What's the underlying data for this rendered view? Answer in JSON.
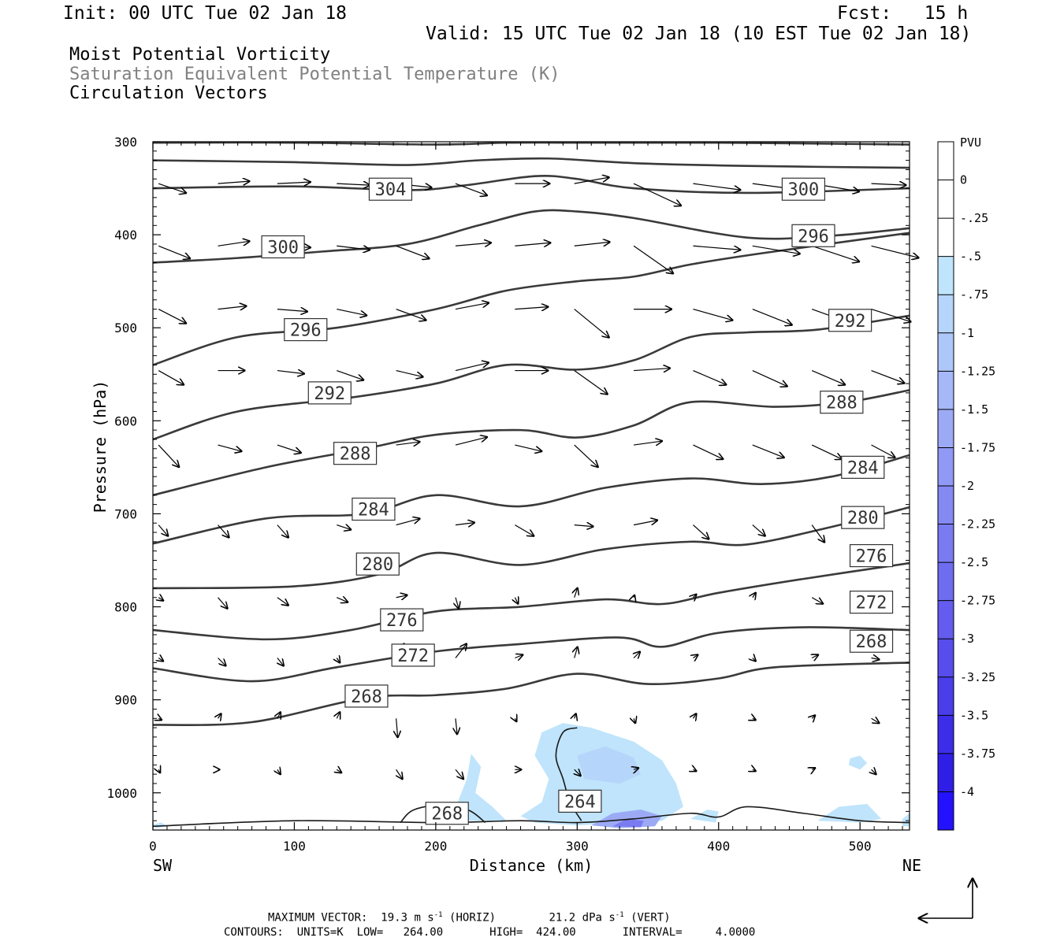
{
  "header": {
    "init": "Init: 00 UTC Tue 02 Jan 18",
    "fcst": "Fcst:   15 h",
    "valid": "Valid: 15 UTC Tue 02 Jan 18 (10 EST Tue 02 Jan 18)",
    "field1": "Moist Potential Vorticity",
    "field2": "Saturation Equivalent Potential Temperature (K)",
    "field3": "Circulation Vectors"
  },
  "footer": {
    "maxvec_label": "MAXIMUM VECTOR:",
    "maxvec_h_value": "19.3",
    "maxvec_h_unit": "m s",
    "maxvec_h_exp": "-1",
    "maxvec_h_tag": "(HORIZ)",
    "maxvec_v_value": "21.2",
    "maxvec_v_unit": "dPa s",
    "maxvec_v_exp": "-1",
    "maxvec_v_tag": "(VERT)",
    "contours": "CONTOURS:  UNITS=K  LOW=   264.00       HIGH=  424.00       INTERVAL=     4.0000"
  },
  "chart_data": {
    "type": "cross-section",
    "xlabel": "Distance (km)",
    "ylabel": "Pressure (hPa)",
    "xlim": [
      0,
      535
    ],
    "ylim": [
      1040,
      300
    ],
    "x_ticks": [
      0,
      100,
      200,
      300,
      400,
      500
    ],
    "y_ticks": [
      300,
      400,
      500,
      600,
      700,
      800,
      900,
      1000
    ],
    "endpoints": {
      "left": "SW",
      "right": "NE"
    },
    "legend": {
      "unit": "PVU",
      "levels": [
        "0",
        "-.25",
        "-.5",
        "-.75",
        "-1",
        "-1.25",
        "-1.5",
        "-1.75",
        "-2",
        "-2.25",
        "-2.5",
        "-2.75",
        "-3",
        "-3.25",
        "-3.5",
        "-3.75",
        "-4"
      ],
      "colors": [
        "#ffffff",
        "#ffffff",
        "#bfe4fb",
        "#b6d5fa",
        "#aec7f9",
        "#a6b8f8",
        "#9caaf6",
        "#9099f5",
        "#858af3",
        "#7a7bf1",
        "#6e6cef",
        "#635cee",
        "#574dec",
        "#4a3dea",
        "#3c2ee8",
        "#2f1fe6",
        "#2412ff"
      ]
    },
    "contour_labels": [
      {
        "value": 304,
        "x": 168,
        "p": 351
      },
      {
        "value": 300,
        "x": 92,
        "p": 413
      },
      {
        "value": 300,
        "x": 460,
        "p": 351
      },
      {
        "value": 296,
        "x": 108,
        "p": 502
      },
      {
        "value": 296,
        "x": 467,
        "p": 401
      },
      {
        "value": 292,
        "x": 125,
        "p": 570
      },
      {
        "value": 292,
        "x": 493,
        "p": 492
      },
      {
        "value": 288,
        "x": 143,
        "p": 635
      },
      {
        "value": 288,
        "x": 487,
        "p": 580
      },
      {
        "value": 284,
        "x": 156,
        "p": 695
      },
      {
        "value": 284,
        "x": 502,
        "p": 650
      },
      {
        "value": 280,
        "x": 159,
        "p": 754
      },
      {
        "value": 280,
        "x": 502,
        "p": 704
      },
      {
        "value": 276,
        "x": 176,
        "p": 814
      },
      {
        "value": 276,
        "x": 508,
        "p": 745
      },
      {
        "value": 272,
        "x": 184,
        "p": 852
      },
      {
        "value": 272,
        "x": 508,
        "p": 795
      },
      {
        "value": 268,
        "x": 151,
        "p": 896
      },
      {
        "value": 268,
        "x": 508,
        "p": 837
      },
      {
        "value": 268,
        "x": 208,
        "p": 1022
      },
      {
        "value": 264,
        "x": 302,
        "p": 1009
      }
    ],
    "contours": [
      {
        "value": 308,
        "pts": [
          [
            0,
            301
          ],
          [
            100,
            301
          ],
          [
            200,
            303
          ],
          [
            250,
            301
          ],
          [
            300,
            301
          ],
          [
            400,
            301
          ],
          [
            535,
            303
          ]
        ]
      },
      {
        "value": 304,
        "pts": [
          [
            0,
            320
          ],
          [
            100,
            322
          ],
          [
            180,
            325
          ],
          [
            230,
            320
          ],
          [
            280,
            318
          ],
          [
            340,
            323
          ],
          [
            420,
            326
          ],
          [
            535,
            328
          ]
        ]
      },
      {
        "value": 304,
        "pts": [
          [
            0,
            350
          ],
          [
            100,
            348
          ],
          [
            180,
            352
          ],
          [
            220,
            347
          ],
          [
            270,
            337
          ],
          [
            300,
            340
          ],
          [
            340,
            350
          ],
          [
            420,
            355
          ],
          [
            535,
            350
          ]
        ]
      },
      {
        "value": 300,
        "pts": [
          [
            0,
            430
          ],
          [
            60,
            425
          ],
          [
            120,
            418
          ],
          [
            180,
            410
          ],
          [
            230,
            390
          ],
          [
            270,
            375
          ],
          [
            300,
            375
          ],
          [
            340,
            382
          ],
          [
            420,
            403
          ],
          [
            480,
            401
          ],
          [
            535,
            393
          ]
        ]
      },
      {
        "value": 296,
        "pts": [
          [
            0,
            540
          ],
          [
            60,
            510
          ],
          [
            130,
            500
          ],
          [
            200,
            480
          ],
          [
            250,
            460
          ],
          [
            300,
            450
          ],
          [
            340,
            445
          ],
          [
            380,
            432
          ],
          [
            430,
            420
          ],
          [
            535,
            398
          ]
        ]
      },
      {
        "value": 292,
        "pts": [
          [
            0,
            620
          ],
          [
            60,
            590
          ],
          [
            140,
            575
          ],
          [
            200,
            560
          ],
          [
            250,
            540
          ],
          [
            300,
            545
          ],
          [
            340,
            535
          ],
          [
            380,
            510
          ],
          [
            420,
            505
          ],
          [
            470,
            502
          ],
          [
            535,
            487
          ]
        ]
      },
      {
        "value": 288,
        "pts": [
          [
            0,
            680
          ],
          [
            80,
            650
          ],
          [
            150,
            630
          ],
          [
            200,
            615
          ],
          [
            260,
            610
          ],
          [
            300,
            618
          ],
          [
            340,
            605
          ],
          [
            380,
            580
          ],
          [
            440,
            585
          ],
          [
            490,
            580
          ],
          [
            535,
            567
          ]
        ]
      },
      {
        "value": 284,
        "pts": [
          [
            0,
            732
          ],
          [
            80,
            705
          ],
          [
            150,
            700
          ],
          [
            200,
            680
          ],
          [
            260,
            692
          ],
          [
            320,
            672
          ],
          [
            380,
            662
          ],
          [
            430,
            668
          ],
          [
            480,
            660
          ],
          [
            535,
            637
          ]
        ]
      },
      {
        "value": 280,
        "pts": [
          [
            0,
            780
          ],
          [
            100,
            778
          ],
          [
            160,
            765
          ],
          [
            200,
            742
          ],
          [
            260,
            755
          ],
          [
            320,
            738
          ],
          [
            380,
            730
          ],
          [
            420,
            733
          ],
          [
            480,
            714
          ],
          [
            535,
            693
          ]
        ]
      },
      {
        "value": 276,
        "pts": [
          [
            0,
            825
          ],
          [
            80,
            835
          ],
          [
            140,
            825
          ],
          [
            200,
            805
          ],
          [
            260,
            800
          ],
          [
            320,
            792
          ],
          [
            360,
            797
          ],
          [
            400,
            785
          ],
          [
            460,
            770
          ],
          [
            535,
            753
          ]
        ]
      },
      {
        "value": 272,
        "pts": [
          [
            0,
            866
          ],
          [
            70,
            880
          ],
          [
            130,
            865
          ],
          [
            200,
            848
          ],
          [
            260,
            840
          ],
          [
            330,
            833
          ],
          [
            360,
            843
          ],
          [
            400,
            828
          ],
          [
            460,
            822
          ],
          [
            535,
            825
          ]
        ]
      },
      {
        "value": 268,
        "pts": [
          [
            0,
            927
          ],
          [
            70,
            924
          ],
          [
            150,
            898
          ],
          [
            200,
            895
          ],
          [
            250,
            888
          ],
          [
            300,
            872
          ],
          [
            350,
            883
          ],
          [
            400,
            877
          ],
          [
            440,
            865
          ],
          [
            535,
            860
          ]
        ]
      }
    ],
    "vectors_note": "circulation vectors (schematic reproduction)"
  }
}
